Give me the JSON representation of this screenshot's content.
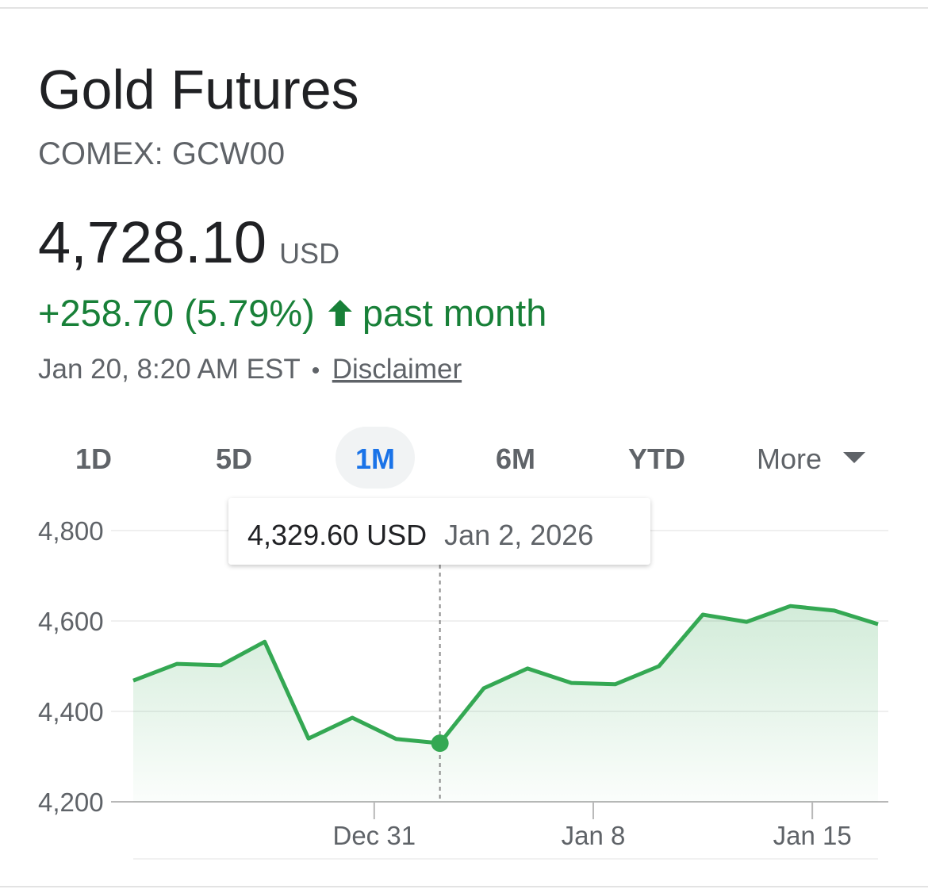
{
  "header": {
    "title": "Gold Futures",
    "ticker": "COMEX: GCW00",
    "price": "4,728.10",
    "currency": "USD",
    "change": "+258.70 (5.79%)",
    "period": "past month",
    "timestamp": "Jan 20, 8:20 AM EST",
    "separator": "•",
    "disclaimer": "Disclaimer"
  },
  "tabs": {
    "items": [
      "1D",
      "5D",
      "1M",
      "6M",
      "YTD",
      "More"
    ],
    "selected": "1M"
  },
  "chart_data": {
    "type": "line",
    "color": "#34a853",
    "categories": [
      null,
      null,
      null,
      null,
      null,
      null,
      "Dec 31",
      null,
      null,
      null,
      null,
      "Jan 8",
      null,
      null,
      null,
      null,
      "Jan 15",
      null
    ],
    "values": [
      4468,
      4505,
      4502,
      4554,
      4340,
      4386,
      4339,
      4329.6,
      4451,
      4495,
      4463,
      4460,
      4500,
      4614,
      4598,
      4633,
      4623,
      4593
    ],
    "ylim": [
      4200,
      4800
    ],
    "yticks": [
      {
        "value": 4200,
        "label": "4,200"
      },
      {
        "value": 4400,
        "label": "4,400"
      },
      {
        "value": 4600,
        "label": "4,600"
      },
      {
        "value": 4800,
        "label": "4,800"
      }
    ],
    "grid": true,
    "tooltip": {
      "index": 7,
      "value_label": "4,329.60 USD",
      "date": "Jan 2, 2026"
    }
  }
}
